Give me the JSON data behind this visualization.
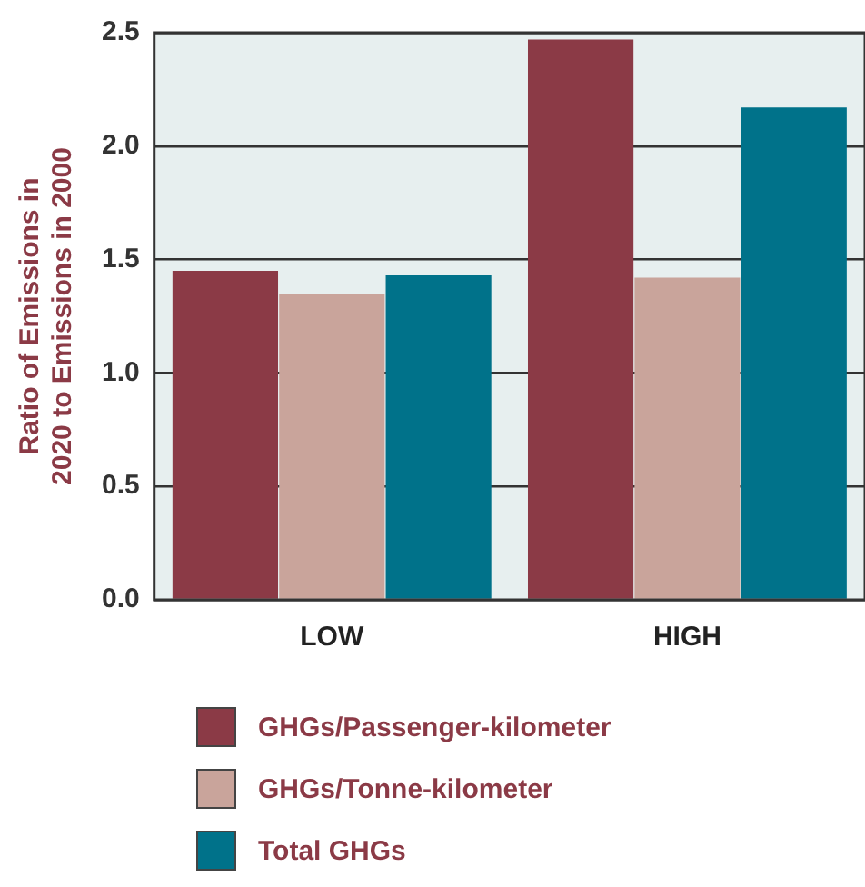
{
  "chart_data": {
    "type": "bar",
    "ylabel": "Ratio of Emissions in 2020 to Emissions in 2000",
    "categories": [
      "LOW",
      "HIGH"
    ],
    "series": [
      {
        "name": "GHGs/Passenger-kilometer",
        "color": "#8b3a46",
        "values": [
          1.45,
          2.47
        ]
      },
      {
        "name": "GHGs/Tonne-kilometer",
        "color": "#c9a49b",
        "values": [
          1.35,
          1.42
        ]
      },
      {
        "name": "Total GHGs",
        "color": "#00728a",
        "values": [
          1.43,
          2.17
        ]
      }
    ],
    "ylim": [
      0,
      2.5
    ],
    "yticks": [
      {
        "value": 0,
        "label": "0.0"
      },
      {
        "value": 0.5,
        "label": "0.5"
      },
      {
        "value": 1,
        "label": "1.0"
      },
      {
        "value": 1.5,
        "label": "1.5"
      },
      {
        "value": 2,
        "label": "2.0"
      },
      {
        "value": 2.5,
        "label": "2.5"
      }
    ],
    "grid": "y",
    "legend": "bottom"
  }
}
